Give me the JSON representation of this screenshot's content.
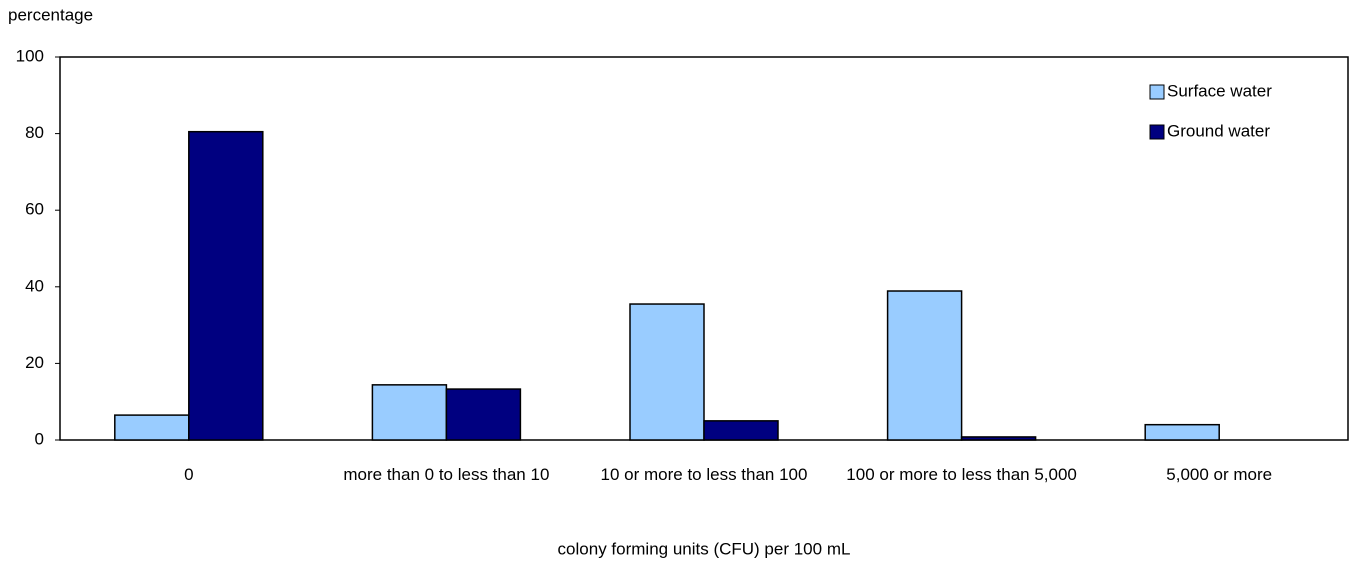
{
  "chart_data": {
    "type": "bar",
    "y_label": "percentage",
    "x_label": "colony forming units (CFU) per 100 mL",
    "categories": [
      "0",
      "more than 0 to less than 10",
      "10 or more to less than 100",
      "100 or more to less than 5,000",
      "5,000 or more"
    ],
    "series": [
      {
        "name": "Surface water",
        "color": "#99ccff",
        "values": [
          6.5,
          14.4,
          35.5,
          38.9,
          4.0
        ]
      },
      {
        "name": "Ground water",
        "color": "#000080",
        "values": [
          80.5,
          13.3,
          5.0,
          0.8,
          0
        ]
      }
    ],
    "ylim": [
      0,
      100
    ],
    "yticks": [
      0,
      20,
      40,
      60,
      80,
      100
    ],
    "grid": false,
    "legend": "top-right"
  }
}
